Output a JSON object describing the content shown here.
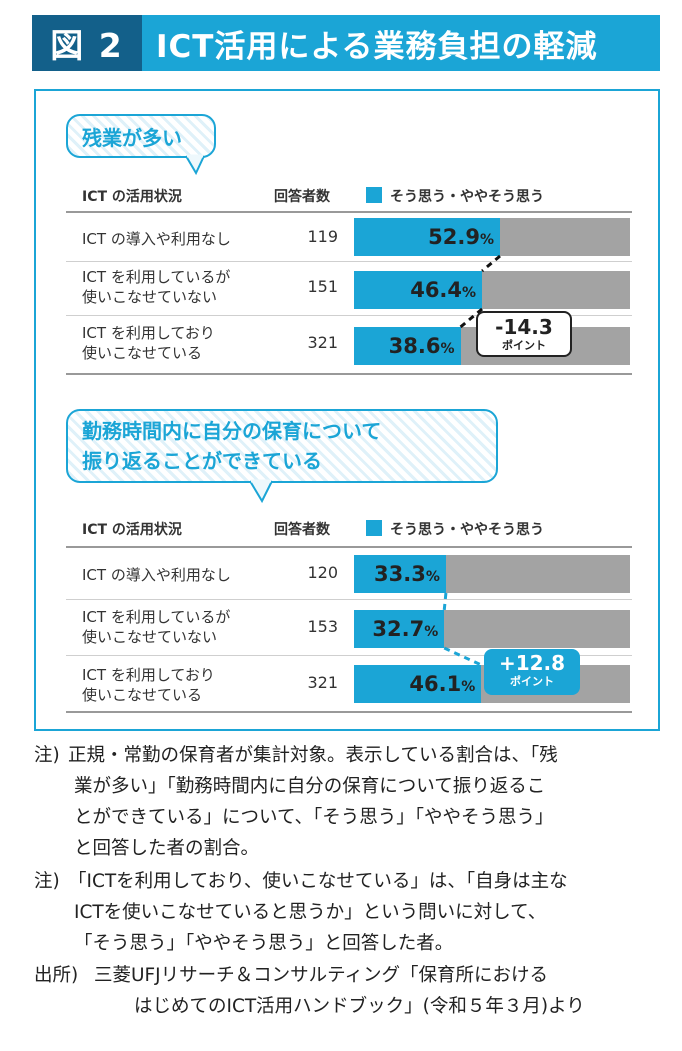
{
  "header": {
    "fig_num": "図 2",
    "title": "ICT活用による業務負担の軽減"
  },
  "chart_data": [
    {
      "type": "bar",
      "title": "残業が多い",
      "col_category": "ICT の活用状況",
      "col_n": "回答者数",
      "legend": "そう思う・ややそう思う",
      "rows": [
        {
          "label_lines": [
            "ICT の導入や利用なし"
          ],
          "n": "119",
          "value": 52.9,
          "value_text": "52.9",
          "unit": "%"
        },
        {
          "label_lines": [
            "ICT を利用しているが",
            "使いこなせていない"
          ],
          "n": "151",
          "value": 46.4,
          "value_text": "46.4",
          "unit": "%"
        },
        {
          "label_lines": [
            "ICT を利用しており",
            "使いこなせている"
          ],
          "n": "321",
          "value": 38.6,
          "value_text": "38.6",
          "unit": "%"
        }
      ],
      "xlim": [
        0,
        100
      ],
      "callout": {
        "value": "-14.3",
        "unit": "ポイント",
        "style": "outline"
      }
    },
    {
      "type": "bar",
      "title_lines": [
        "勤務時間内に自分の保育について",
        "振り返ることができている"
      ],
      "col_category": "ICT の活用状況",
      "col_n": "回答者数",
      "legend": "そう思う・ややそう思う",
      "rows": [
        {
          "label_lines": [
            "ICT の導入や利用なし"
          ],
          "n": "120",
          "value": 33.3,
          "value_text": "33.3",
          "unit": "%"
        },
        {
          "label_lines": [
            "ICT を利用しているが",
            "使いこなせていない"
          ],
          "n": "153",
          "value": 32.7,
          "value_text": "32.7",
          "unit": "%"
        },
        {
          "label_lines": [
            "ICT を利用しており",
            "使いこなせている"
          ],
          "n": "321",
          "value": 46.1,
          "value_text": "46.1",
          "unit": "%"
        }
      ],
      "xlim": [
        0,
        100
      ],
      "callout": {
        "value": "+12.8",
        "unit": "ポイント",
        "style": "filled"
      }
    }
  ],
  "notes": [
    {
      "lead": "注)",
      "lines": [
        "正規・常勤の保育者が集計対象。表示している割合は、「残",
        "業が多い」「勤務時間内に自分の保育について振り返るこ",
        "とができている」について、「そう思う」「ややそう思う」",
        "と回答した者の割合。"
      ]
    },
    {
      "lead": "注)",
      "lines": [
        "「ICTを利用しており、使いこなせている」は、「自身は主な",
        "ICTを使いこなせていると思うか」という問いに対して、",
        "「そう思う」「ややそう思う」と回答した者。"
      ]
    },
    {
      "lead": "出所)",
      "lines": [
        "三菱UFJリサーチ＆コンサルティング「保育所における",
        "はじめてのICT活用ハンドブック」(令和５年３月)より"
      ]
    }
  ],
  "colors": {
    "accent": "#1ba5d6",
    "dark": "#13608a",
    "bar_rest": "#a3a3a3"
  }
}
